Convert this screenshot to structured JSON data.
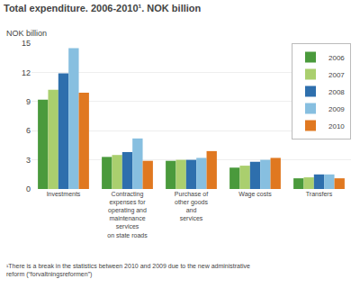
{
  "chart_data": {
    "type": "bar",
    "title": "Total expenditure. 2006-2010¹. NOK billion",
    "ylabel": "NOK billion",
    "annotations": [
      "¹There is a break in the statistics between 2010 and 2009 due to the new administrative\nreform (“forvaltningsreformen”)"
    ],
    "categories": [
      "Investments",
      "Contracting\nexpenses for\noperating and\nmaintenance\nservices\non state roads",
      "Purchase of\nother goods\nand\nservices",
      "Wage costs",
      "Transfers"
    ],
    "series": [
      {
        "name": "2006",
        "color": "#4a9a3c",
        "values": [
          9.2,
          3.3,
          2.9,
          2.2,
          1.1
        ]
      },
      {
        "name": "2007",
        "color": "#aacf6e",
        "values": [
          10.2,
          3.5,
          3.0,
          2.4,
          1.2
        ]
      },
      {
        "name": "2008",
        "color": "#2e6fad",
        "values": [
          11.9,
          3.8,
          3.0,
          2.8,
          1.5
        ]
      },
      {
        "name": "2009",
        "color": "#87bfe0",
        "values": [
          14.5,
          5.2,
          3.2,
          3.0,
          1.5
        ]
      },
      {
        "name": "2010",
        "color": "#e07820",
        "values": [
          9.9,
          2.9,
          3.9,
          3.2,
          1.1
        ]
      }
    ],
    "ylim": [
      0,
      15
    ],
    "yticks": [
      0,
      3,
      6,
      9,
      12,
      15
    ],
    "grid": true,
    "legend": "upper right"
  }
}
